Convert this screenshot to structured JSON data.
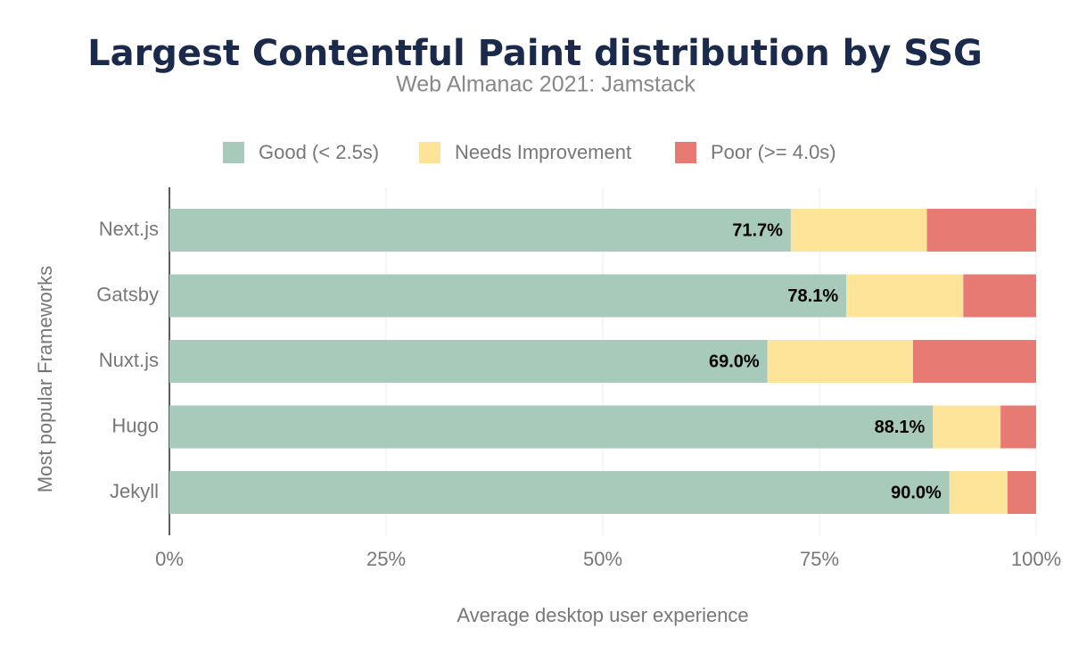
{
  "chart_data": {
    "type": "stacked-bar-horizontal",
    "title": "Largest Contentful Paint distribution by SSG",
    "subtitle": "Web Almanac 2021: Jamstack",
    "x_label": "Average desktop user experience",
    "y_label": "Most popular Frameworks",
    "categories": [
      "Next.js",
      "Gatsby",
      "Nuxt.js",
      "Hugo",
      "Jekyll"
    ],
    "series": [
      {
        "name": "Good (< 2.5s)",
        "color": "#a8cabb",
        "values": [
          71.7,
          78.1,
          69.0,
          88.1,
          90.0
        ],
        "value_labels": [
          "71.7%",
          "78.1%",
          "69.0%",
          "88.1%",
          "90.0%"
        ]
      },
      {
        "name": "Needs Improvement",
        "color": "#fde499",
        "values": [
          15.7,
          13.5,
          16.8,
          7.8,
          6.7
        ]
      },
      {
        "name": "Poor (>= 4.0s)",
        "color": "#e77b73",
        "values": [
          12.6,
          8.4,
          14.2,
          4.1,
          3.3
        ]
      }
    ],
    "xlim": [
      0,
      100
    ],
    "xticks": [
      {
        "value": 0,
        "label": "0%"
      },
      {
        "value": 25,
        "label": "25%"
      },
      {
        "value": 50,
        "label": "50%"
      },
      {
        "value": 75,
        "label": "75%"
      },
      {
        "value": 100,
        "label": "100%"
      }
    ],
    "grid": true,
    "legend_position": "top"
  }
}
